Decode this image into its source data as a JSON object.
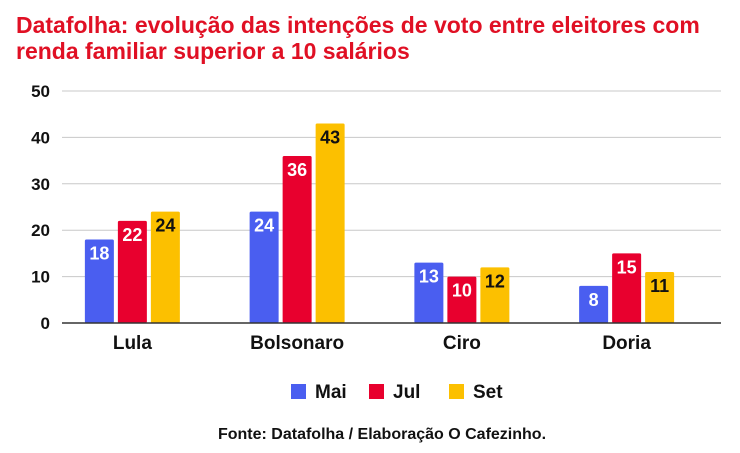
{
  "chart_data": {
    "type": "bar",
    "title": "Datafolha: evolução das intenções de voto entre eleitores com renda familiar superior a 10 salários",
    "categories": [
      "Lula",
      "Bolsonaro",
      "Ciro",
      "Doria"
    ],
    "series": [
      {
        "name": "Mai",
        "values": [
          18,
          24,
          13,
          8
        ],
        "color": "#4a5ef0",
        "label_color": "#ffffff"
      },
      {
        "name": "Jul",
        "values": [
          22,
          36,
          10,
          15
        ],
        "color": "#e8002e",
        "label_color": "#ffffff"
      },
      {
        "name": "Set",
        "values": [
          24,
          43,
          12,
          11
        ],
        "color": "#fcc000",
        "label_color": "#111111"
      }
    ],
    "yticks": [
      "0",
      "10",
      "20",
      "30",
      "40",
      "50"
    ],
    "ylim": [
      0,
      50
    ],
    "grid": true,
    "legend_position": "bottom",
    "xlabel": "",
    "ylabel": ""
  },
  "source": "Fonte: Datafolha / Elaboração O Cafezinho."
}
